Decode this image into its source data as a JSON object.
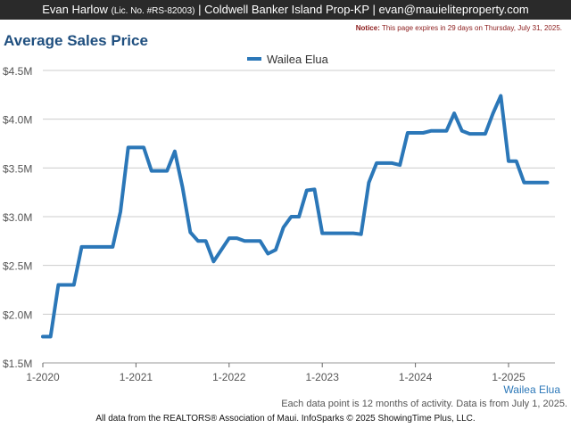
{
  "header": {
    "agent": "Evan Harlow",
    "license": "(Lic. No. #RS-82003)",
    "office_email": "| Coldwell Banker Island Prop-KP | evan@mauieliteproperty.com"
  },
  "notice": {
    "label": "Notice:",
    "text": "This page expires in 29 days on Thursday, July 31, 2025."
  },
  "footer": {
    "region": "Wailea Elua",
    "note": "Each data point is 12 months of activity. Data is from July 1, 2025.",
    "copyright": "All data from the REALTORS® Association of Maui. InfoSparks © 2025 ShowingTime Plus, LLC."
  },
  "chart_data": {
    "type": "line",
    "title": "Average Sales Price",
    "xlabel": "",
    "ylabel": "",
    "x_ticks": [
      "1-2020",
      "1-2021",
      "1-2022",
      "1-2023",
      "1-2024",
      "1-2025"
    ],
    "y_ticks": [
      "$1.5M",
      "$2.0M",
      "$2.5M",
      "$3.0M",
      "$3.5M",
      "$4.0M",
      "$4.5M"
    ],
    "ylim": [
      1.5,
      4.5
    ],
    "y_unit": "millions USD",
    "grid": true,
    "legend": "top-center",
    "color": "#2b77b8",
    "series": [
      {
        "name": "Wailea Elua",
        "x": [
          "2020-01",
          "2020-02",
          "2020-03",
          "2020-04",
          "2020-05",
          "2020-06",
          "2020-07",
          "2020-08",
          "2020-09",
          "2020-10",
          "2020-11",
          "2020-12",
          "2021-01",
          "2021-02",
          "2021-03",
          "2021-04",
          "2021-05",
          "2021-06",
          "2021-07",
          "2021-08",
          "2021-09",
          "2021-10",
          "2021-11",
          "2021-12",
          "2022-01",
          "2022-02",
          "2022-03",
          "2022-04",
          "2022-05",
          "2022-06",
          "2022-07",
          "2022-08",
          "2022-09",
          "2022-10",
          "2022-11",
          "2022-12",
          "2023-01",
          "2023-02",
          "2023-03",
          "2023-04",
          "2023-05",
          "2023-06",
          "2023-07",
          "2023-08",
          "2023-09",
          "2023-10",
          "2023-11",
          "2023-12",
          "2024-01",
          "2024-02",
          "2024-03",
          "2024-04",
          "2024-05",
          "2024-06",
          "2024-07",
          "2024-08",
          "2024-09",
          "2024-10",
          "2024-11",
          "2024-12",
          "2025-01",
          "2025-02",
          "2025-03",
          "2025-04",
          "2025-05",
          "2025-06"
        ],
        "values": [
          1.77,
          1.77,
          2.3,
          2.3,
          2.3,
          2.69,
          2.69,
          2.69,
          2.69,
          2.69,
          3.05,
          3.71,
          3.71,
          3.71,
          3.47,
          3.47,
          3.47,
          3.67,
          3.3,
          2.84,
          2.75,
          2.75,
          2.54,
          2.66,
          2.78,
          2.78,
          2.75,
          2.75,
          2.75,
          2.62,
          2.66,
          2.89,
          3.0,
          3.0,
          3.27,
          3.28,
          2.83,
          2.83,
          2.83,
          2.83,
          2.83,
          2.82,
          3.35,
          3.55,
          3.55,
          3.55,
          3.53,
          3.86,
          3.86,
          3.86,
          3.88,
          3.88,
          3.88,
          4.06,
          3.88,
          3.85,
          3.85,
          3.85,
          4.06,
          4.24,
          3.57,
          3.57,
          3.35,
          3.35,
          3.35,
          3.35
        ]
      }
    ]
  }
}
